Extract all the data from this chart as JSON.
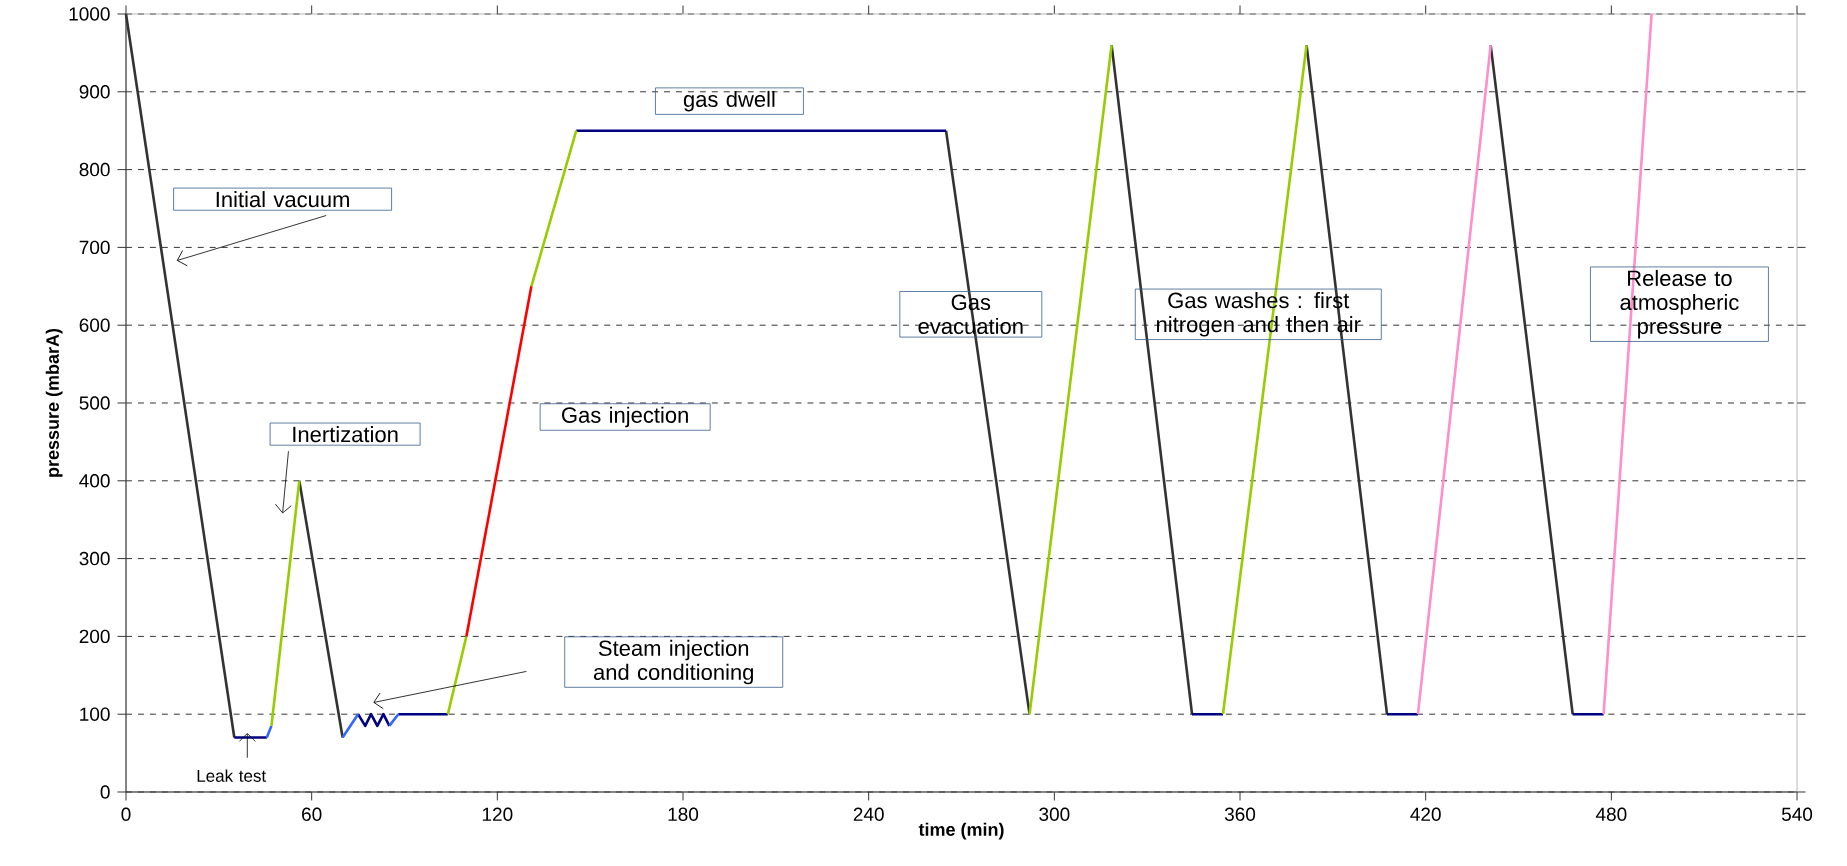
{
  "chart_data": {
    "type": "line",
    "xlabel": "time (min)",
    "ylabel": "pressure (mbarA)",
    "xlim": [
      0,
      540
    ],
    "ylim": [
      0,
      1000
    ],
    "xticks": [
      0,
      60,
      120,
      180,
      240,
      300,
      360,
      420,
      480,
      540
    ],
    "yticks": [
      0,
      100,
      200,
      300,
      400,
      500,
      600,
      700,
      800,
      900,
      1000
    ],
    "grid": "y",
    "marker": "none",
    "line_style": "solid",
    "series": [
      {
        "color": "#333333",
        "x": [
          0,
          35,
          45,
          56,
          70,
          100,
          265,
          292,
          300,
          318.5,
          344.5,
          360,
          381.5,
          407.5,
          420,
          441,
          467.5
        ],
        "values": [
          1000,
          70,
          null,
          400,
          70,
          null,
          850,
          100,
          null,
          960,
          100,
          null,
          960,
          100,
          null,
          960,
          100
        ]
      },
      {
        "color": "#000080",
        "x": [
          35,
          45.5,
          60,
          75,
          77.3,
          79.2,
          81.2,
          83.2,
          85.1,
          86,
          88,
          104,
          120,
          145.5,
          265,
          300,
          344.5,
          354.5,
          380,
          407.5,
          417.5,
          440,
          467.5,
          477.5
        ],
        "values": [
          70,
          70,
          null,
          100,
          85,
          100,
          85,
          100,
          85,
          null,
          100,
          100,
          null,
          850,
          850,
          null,
          100,
          100,
          null,
          100,
          100,
          null,
          100,
          100
        ]
      },
      {
        "color": "#3366ff",
        "x": [
          45.5,
          47,
          60,
          70,
          75,
          80,
          85.1,
          88
        ],
        "values": [
          70,
          85,
          null,
          70,
          100,
          null,
          85,
          100
        ]
      },
      {
        "color": "#99cc00",
        "x": [
          47,
          56,
          80,
          104,
          110,
          120,
          131,
          145.5,
          200,
          292,
          318.5,
          340,
          354.5,
          381.5
        ],
        "values": [
          85,
          400,
          null,
          100,
          200,
          null,
          650,
          850,
          null,
          100,
          960,
          null,
          100,
          960
        ]
      },
      {
        "color": "#ff0000",
        "x": [
          110,
          131
        ],
        "values": [
          200,
          650
        ]
      },
      {
        "color": "#ff8ecc",
        "x": [
          417.5,
          441,
          460,
          477.5,
          493
        ],
        "values": [
          100,
          960,
          null,
          100,
          1000
        ]
      }
    ],
    "annotations": [
      "Initial vacuum",
      "Inertization",
      {
        "text": "Leak test",
        "x": 39.2,
        "y": 76
      },
      "Gas injection",
      "Steam injection and conditioning",
      "gas dwell",
      "Gas evacuation",
      "Gas washes : first nitrogen and then air",
      "Release to atmospheric pressure"
    ]
  }
}
